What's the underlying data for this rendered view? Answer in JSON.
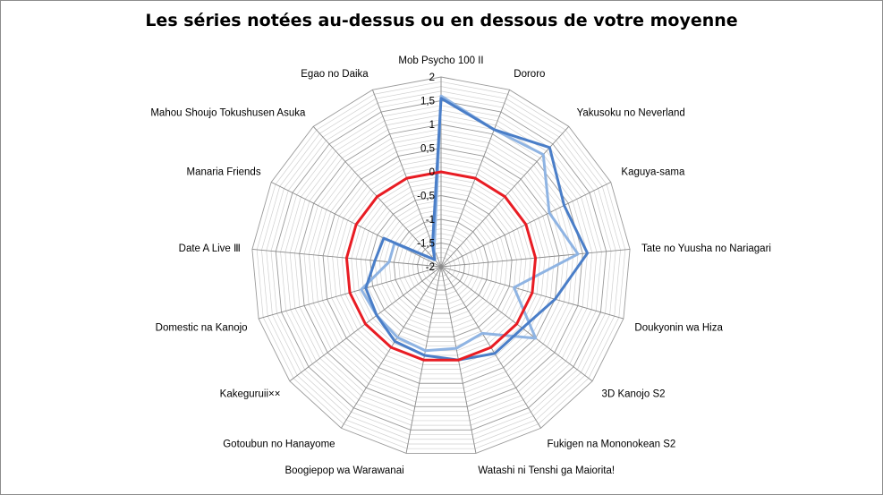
{
  "chart_data": {
    "type": "radar",
    "title": "Les séries notées au-dessus ou en dessous de votre moyenne",
    "categories": [
      "Mob Psycho 100 II",
      "Dororo",
      "Yakusoku no Neverland",
      "Kaguya-sama",
      "Tate no Yuusha no Nariagari",
      "Doukyonin wa Hiza",
      "3D Kanojo S2",
      "Fukigen na Mononokean S2",
      "Watashi ni Tenshi ga Maiorita!",
      "Boogiepop wa Warawanai",
      "Gotoubun no Hanayome",
      "Kakeguruii××",
      "Domestic na Kanojo",
      "Date A Live Ⅲ",
      "Manaria Friends",
      "Mahou Shoujo Tokushusen Asuka",
      "Egao no Daika"
    ],
    "axis": {
      "min": -2,
      "max": 2,
      "major_step": 0.5,
      "minor_step": 0.1,
      "tick_labels": [
        "-2",
        "-1,5",
        "-1",
        "-0,5",
        "0",
        "0,5",
        "1",
        "1,5",
        "2"
      ]
    },
    "grid": true,
    "legend": "none",
    "series": [
      {
        "color": "#e81c23",
        "values": [
          0,
          0,
          0,
          0,
          0,
          0,
          0,
          0,
          0,
          0,
          0,
          0,
          0,
          0,
          0,
          0,
          0
        ]
      },
      {
        "color": "#4a7ec8",
        "values": [
          1.55,
          1.1,
          1.4,
          0.9,
          1.1,
          0.5,
          0.15,
          0.15,
          0.0,
          -0.1,
          -0.15,
          -0.3,
          -0.35,
          -0.6,
          -0.65,
          -1.8,
          -1.5
        ]
      },
      {
        "color": "#8fb4e3",
        "values": [
          1.6,
          1.1,
          1.2,
          0.55,
          0.9,
          -0.4,
          0.5,
          -0.35,
          -0.25,
          -0.2,
          -0.25,
          -0.3,
          -0.25,
          -0.9,
          -0.9,
          -1.8,
          -1.6
        ]
      }
    ]
  }
}
